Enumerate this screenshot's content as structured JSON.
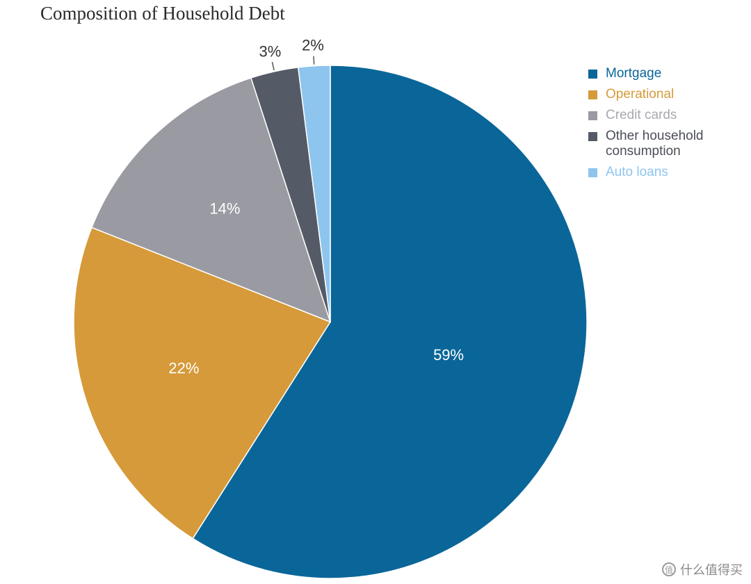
{
  "chart_data": {
    "type": "pie",
    "title": "Composition of Household Debt",
    "slices": [
      {
        "label": "Mortgage",
        "value": 59,
        "display": "59%",
        "color": "#0a6699",
        "label_color": "#0a6699",
        "text_color": "#ffffff"
      },
      {
        "label": "Operational",
        "value": 22,
        "display": "22%",
        "color": "#d69a3a",
        "label_color": "#d69a3a",
        "text_color": "#ffffff"
      },
      {
        "label": "Credit cards",
        "value": 14,
        "display": "14%",
        "color": "#9a9ba2",
        "label_color": "#a8a9ae",
        "text_color": "#ffffff"
      },
      {
        "label": "Other household consumption",
        "value": 3,
        "display": "3%",
        "color": "#555b66",
        "label_color": "#4a4e56",
        "text_color": "#333333"
      },
      {
        "label": "Auto loans",
        "value": 2,
        "display": "2%",
        "color": "#8ec5ef",
        "label_color": "#8ec5ef",
        "text_color": "#333333"
      }
    ],
    "legend_position": "right"
  },
  "watermark": {
    "text": "什么值得买",
    "icon": "zhi-icon"
  }
}
